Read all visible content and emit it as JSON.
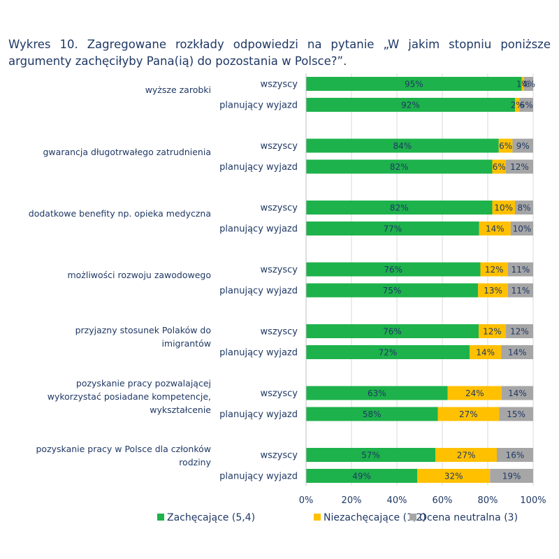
{
  "title": "Wykres 10. Zagregowane rozkłady odpowiedzi na pytanie „W jakim stopniu poniższe argumenty zachęciłyby Pana(ią) do pozostania w Polsce?”.",
  "chart_data": {
    "type": "bar",
    "orientation": "horizontal",
    "stacked": true,
    "title": "Wykres 10. Zagregowane rozkłady odpowiedzi na pytanie „W jakim stopniu poniższe argumenty zachęciłyby Pana(ią) do pozostania w Polsce?”.",
    "xlim": [
      0,
      100
    ],
    "x_ticks": [
      "0%",
      "20%",
      "40%",
      "60%",
      "80%",
      "100%"
    ],
    "grid": true,
    "legend_position": "bottom",
    "groups": [
      "wszyscy",
      "planujący wyjazd"
    ],
    "categories": [
      "wyższe zarobki",
      "gwarancja długotrwałego zatrudnienia",
      "dodatkowe benefity np. opieka medyczna",
      "możliwości rozwoju zawodowego",
      "przyjazny stosunek Polaków do imigrantów",
      "pozyskanie pracy pozwalającej wykorzystać posiadane kompetencje, wykształcenie",
      "pozyskanie pracy w Polsce dla członków rodziny"
    ],
    "series": [
      {
        "name": "Zachęcające (5,4)",
        "color": "#1db24b",
        "values": [
          [
            95,
            92
          ],
          [
            84,
            82
          ],
          [
            82,
            77
          ],
          [
            76,
            75
          ],
          [
            76,
            72
          ],
          [
            63,
            58
          ],
          [
            57,
            49
          ]
        ],
        "labels": [
          [
            "95%",
            "92%"
          ],
          [
            "84%",
            "82%"
          ],
          [
            "82%",
            "77%"
          ],
          [
            "76%",
            "75%"
          ],
          [
            "76%",
            "72%"
          ],
          [
            "63%",
            "58%"
          ],
          [
            "57%",
            "49%"
          ]
        ]
      },
      {
        "name": "Niezachęcające (1,2)",
        "color": "#ffc000",
        "values": [
          [
            1,
            2
          ],
          [
            6,
            6
          ],
          [
            10,
            14
          ],
          [
            12,
            13
          ],
          [
            12,
            14
          ],
          [
            24,
            27
          ],
          [
            27,
            32
          ]
        ],
        "labels": [
          [
            "1%",
            "2%"
          ],
          [
            "6%",
            "6%"
          ],
          [
            "10%",
            "14%"
          ],
          [
            "12%",
            "13%"
          ],
          [
            "12%",
            "14%"
          ],
          [
            "24%",
            "27%"
          ],
          [
            "27%",
            "32%"
          ]
        ]
      },
      {
        "name": "Ocena neutralna (3)",
        "color": "#a6a6a6",
        "values": [
          [
            4,
            6
          ],
          [
            9,
            12
          ],
          [
            8,
            10
          ],
          [
            11,
            11
          ],
          [
            12,
            14
          ],
          [
            14,
            15
          ],
          [
            16,
            19
          ]
        ],
        "labels": [
          [
            "4%",
            "6%"
          ],
          [
            "9%",
            "12%"
          ],
          [
            "8%",
            "10%"
          ],
          [
            "11%",
            "11%"
          ],
          [
            "12%",
            "14%"
          ],
          [
            "14%",
            "15%"
          ],
          [
            "16%",
            "19%"
          ]
        ]
      }
    ]
  }
}
